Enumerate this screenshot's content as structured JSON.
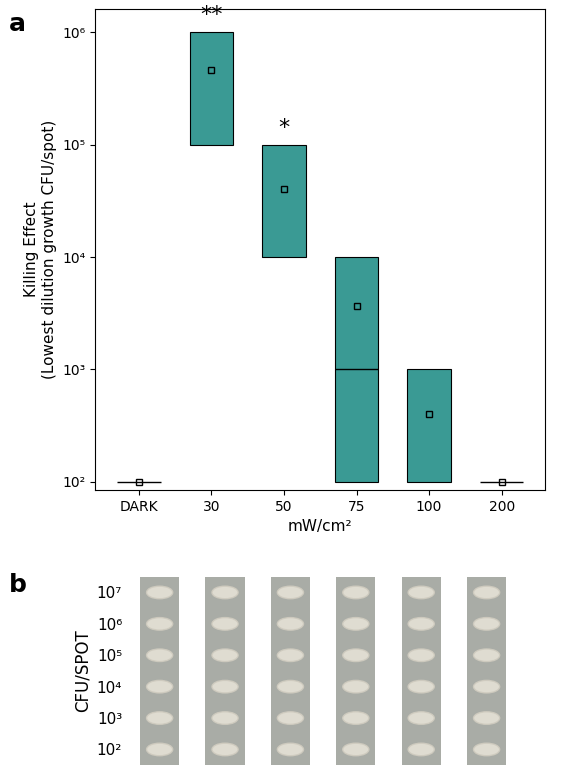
{
  "chart_data": [
    {
      "type": "box",
      "panel": "a",
      "ylabel": "Killing Effect\n(Lowest dilution growth CFU/spot)",
      "xlabel": "mW/cm²",
      "categories": [
        "DARK",
        "30",
        "50",
        "75",
        "100",
        "200"
      ],
      "q1": [
        100,
        100000,
        10000,
        100,
        100,
        100
      ],
      "q3": [
        100,
        1000000,
        100000,
        10000,
        1000,
        100
      ],
      "median": [
        100,
        null,
        null,
        1000,
        null,
        100
      ],
      "mean": [
        100,
        460000,
        40000,
        3700,
        400,
        100
      ],
      "color": "#3a9a94",
      "log": "y",
      "ylim": [
        85,
        1600000
      ],
      "yticks": [
        {
          "value": 100,
          "label": "10²"
        },
        {
          "value": 1000,
          "label": "10³"
        },
        {
          "value": 10000,
          "label": "10⁴"
        },
        {
          "value": 100000,
          "label": "10⁵"
        },
        {
          "value": 1000000,
          "label": "10⁶"
        }
      ],
      "annotations": [
        {
          "category": "30",
          "text": "**"
        },
        {
          "category": "50",
          "text": "*"
        }
      ]
    },
    {
      "type": "spot_assay",
      "panel": "b",
      "ylabel": "CFU/SPOT",
      "yticks": [
        {
          "value": 0,
          "label": "10⁷"
        },
        {
          "value": 1,
          "label": "10⁶"
        },
        {
          "value": 2,
          "label": "10⁵"
        },
        {
          "value": 3,
          "label": "10⁴"
        },
        {
          "value": 4,
          "label": "10³"
        },
        {
          "value": 5,
          "label": "10²"
        }
      ]
    }
  ]
}
